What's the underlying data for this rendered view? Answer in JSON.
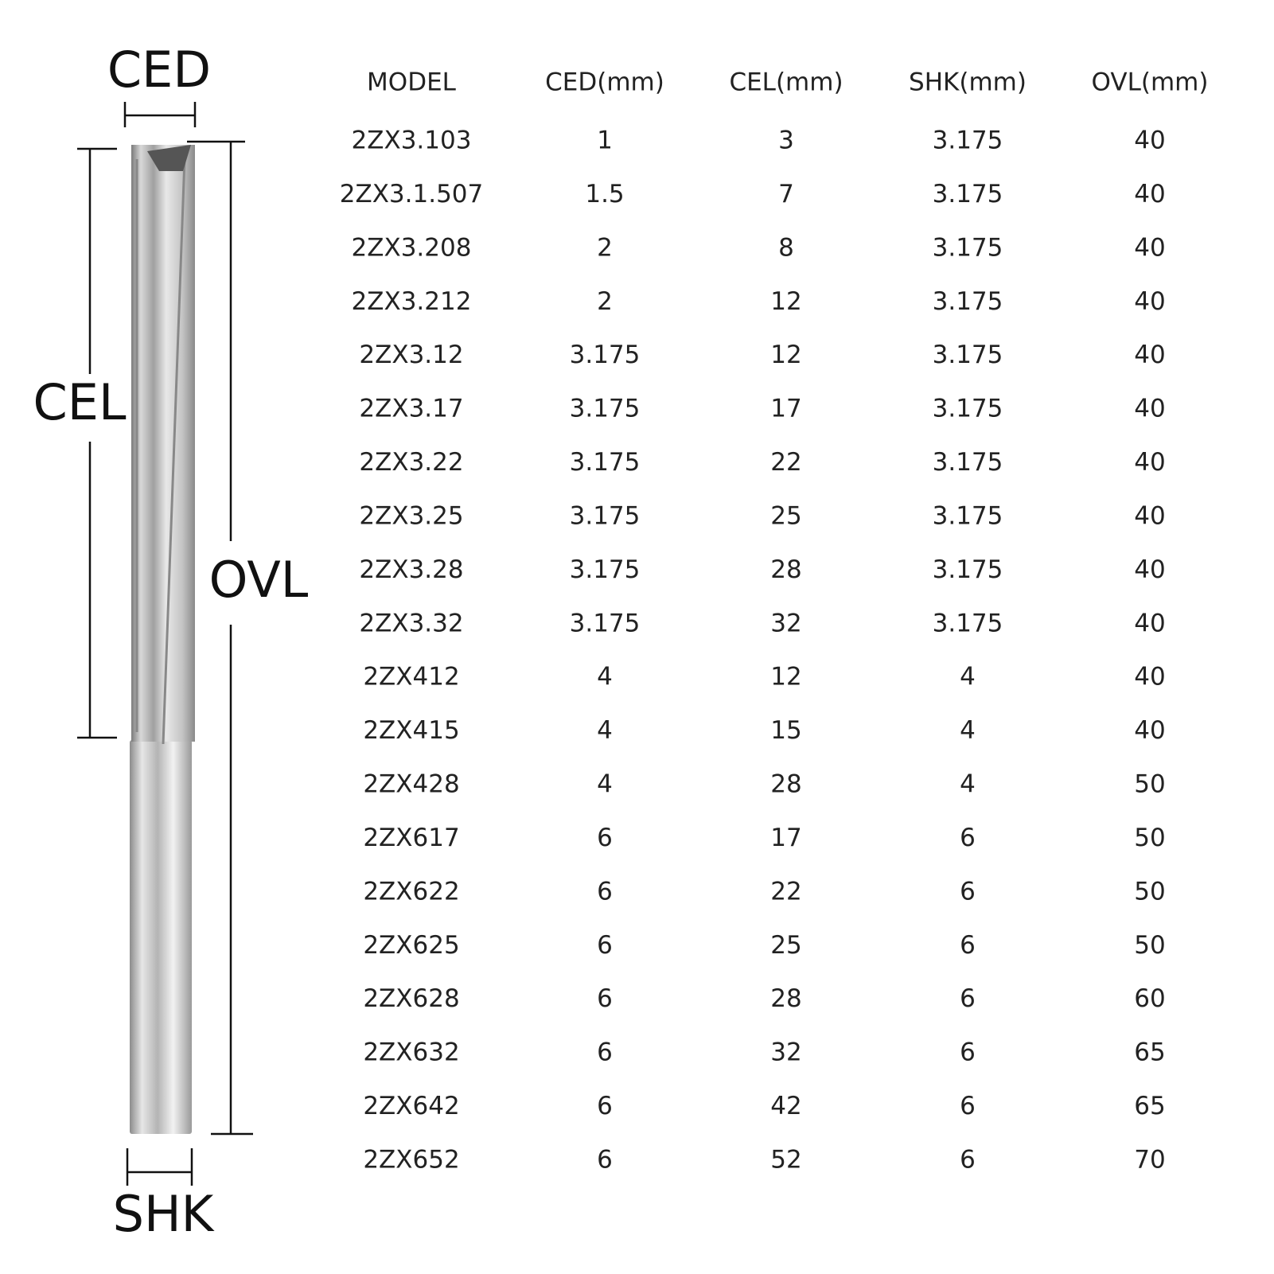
{
  "diagram": {
    "ced": "CED",
    "cel": "CEL",
    "ovl": "OVL",
    "shk": "SHK"
  },
  "table": {
    "headers": [
      "MODEL",
      "CED(mm)",
      "CEL(mm)",
      "SHK(mm)",
      "OVL(mm)"
    ],
    "rows": [
      [
        "2ZX3.103",
        1,
        3,
        3.175,
        40
      ],
      [
        "2ZX3.1.507",
        1.5,
        7,
        3.175,
        40
      ],
      [
        "2ZX3.208",
        2,
        8,
        3.175,
        40
      ],
      [
        "2ZX3.212",
        2,
        12,
        3.175,
        40
      ],
      [
        "2ZX3.12",
        3.175,
        12,
        3.175,
        40
      ],
      [
        "2ZX3.17",
        3.175,
        17,
        3.175,
        40
      ],
      [
        "2ZX3.22",
        3.175,
        22,
        3.175,
        40
      ],
      [
        "2ZX3.25",
        3.175,
        25,
        3.175,
        40
      ],
      [
        "2ZX3.28",
        3.175,
        28,
        3.175,
        40
      ],
      [
        "2ZX3.32",
        3.175,
        32,
        3.175,
        40
      ],
      [
        "2ZX412",
        4,
        12,
        4,
        40
      ],
      [
        "2ZX415",
        4,
        15,
        4,
        40
      ],
      [
        "2ZX428",
        4,
        28,
        4,
        50
      ],
      [
        "2ZX617",
        6,
        17,
        6,
        50
      ],
      [
        "2ZX622",
        6,
        22,
        6,
        50
      ],
      [
        "2ZX625",
        6,
        25,
        6,
        50
      ],
      [
        "2ZX628",
        6,
        28,
        6,
        60
      ],
      [
        "2ZX632",
        6,
        32,
        6,
        65
      ],
      [
        "2ZX642",
        6,
        42,
        6,
        65
      ],
      [
        "2ZX652",
        6,
        52,
        6,
        70
      ]
    ]
  }
}
